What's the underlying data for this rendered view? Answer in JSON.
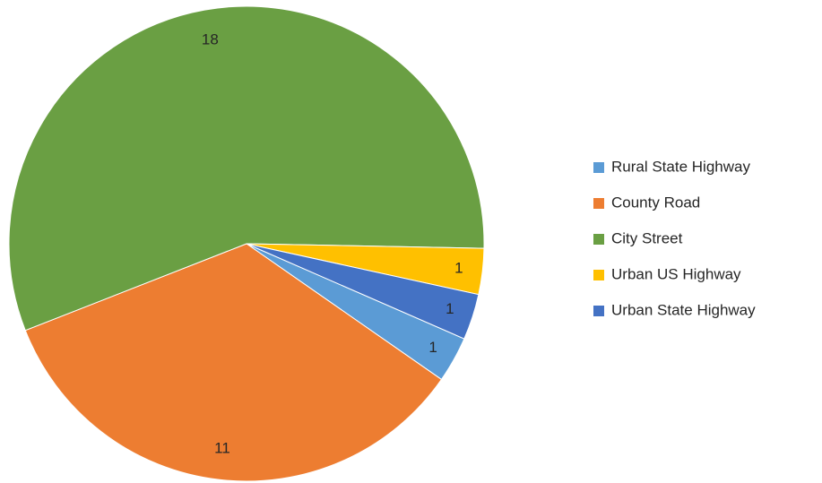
{
  "chart_data": {
    "type": "pie",
    "categories": [
      "Rural State Highway",
      "County Road",
      "City Street",
      "Urban US Highway",
      "Urban State Highway"
    ],
    "values": [
      1,
      11,
      18,
      1,
      1
    ],
    "colors": [
      "#5b9bd5",
      "#ed7d31",
      "#6a9f43",
      "#ffc000",
      "#4472c4"
    ],
    "legend": "right"
  }
}
